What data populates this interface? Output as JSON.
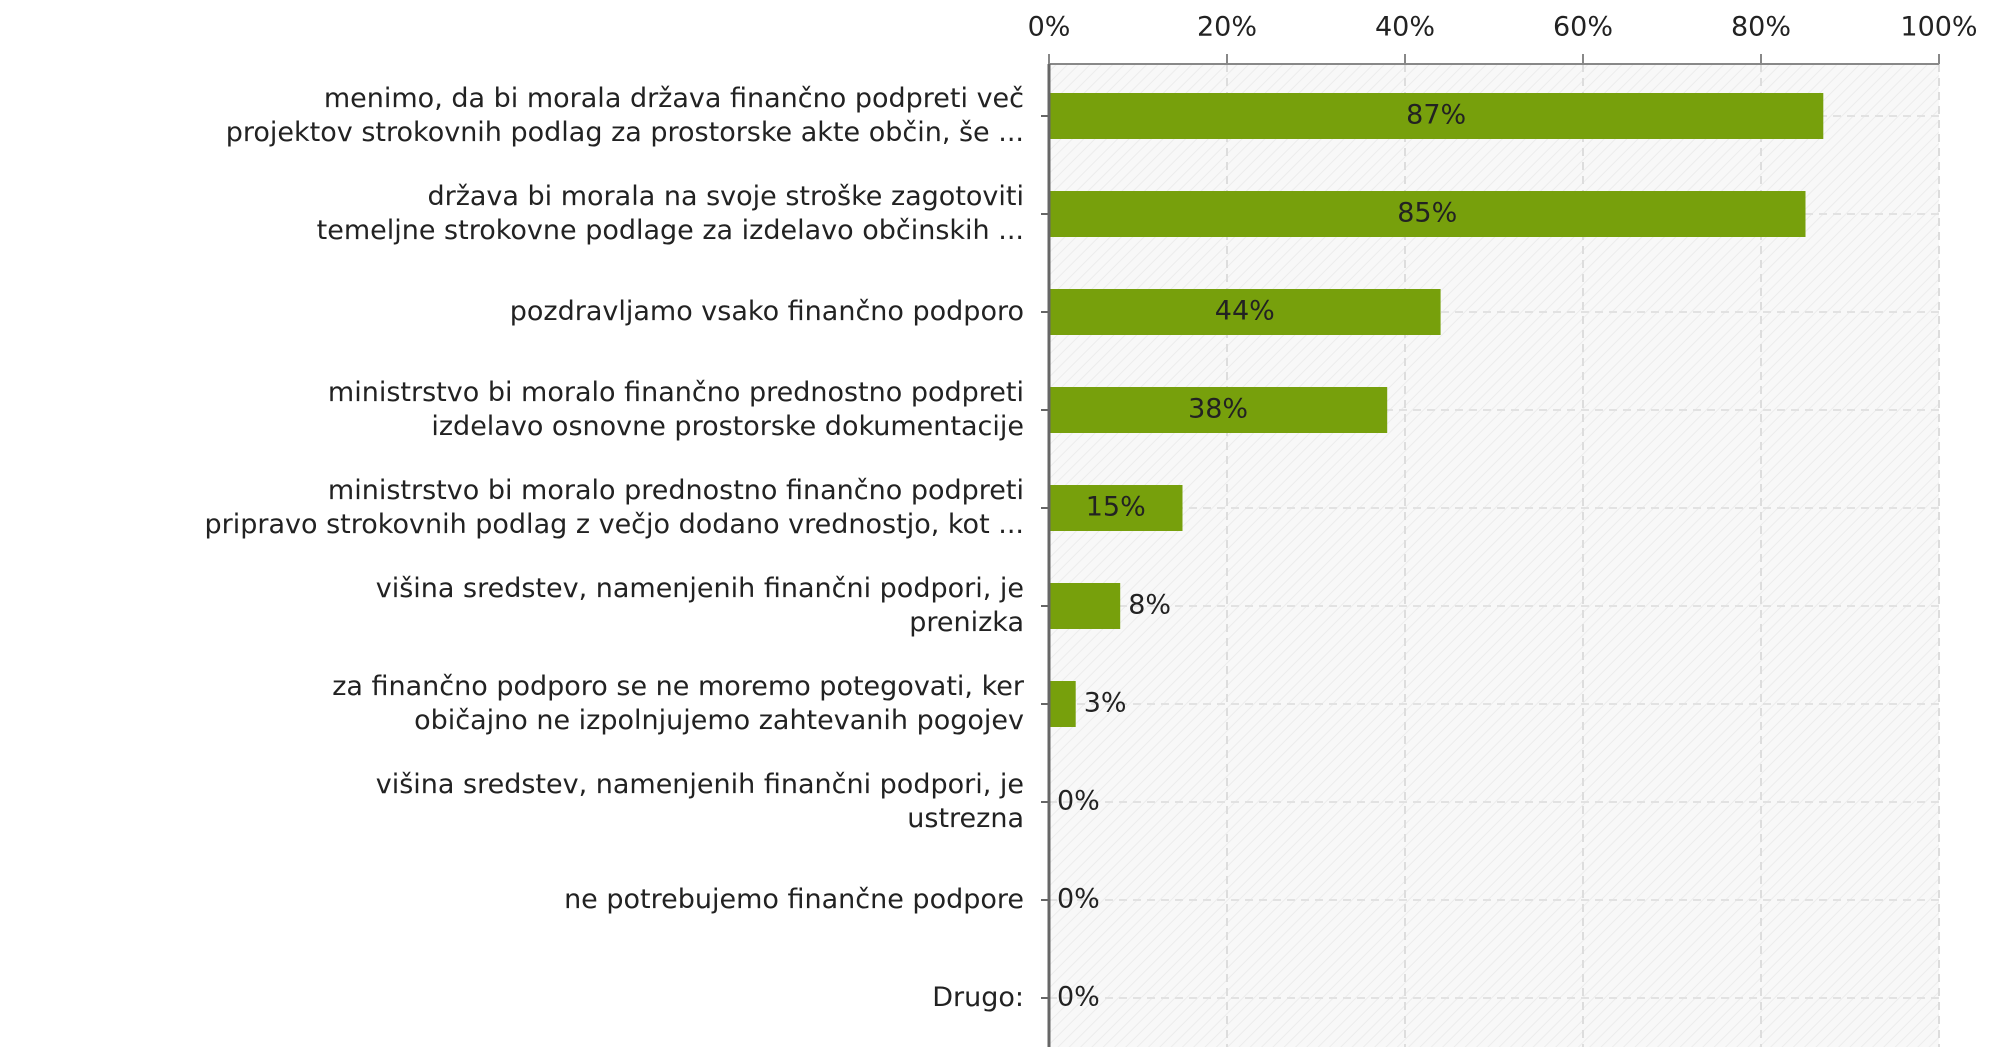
{
  "chart_data": {
    "type": "barh",
    "categories": [
      "menimo, da bi morala država finančno podpreti več\nprojektov strokovnih podlag za prostorske akte občin, še ...",
      "država bi morala na svoje stroške zagotoviti\ntemeljne strokovne podlage za izdelavo občinskih ...",
      "pozdravljamo vsako finančno podporo",
      "ministrstvo bi moralo finančno prednostno podpreti\nizdelavo osnovne prostorske dokumentacije",
      "ministrstvo bi moralo prednostno finančno podpreti\npripravo strokovnih podlag z večjo dodano vrednostjo, kot ...",
      "višina sredstev, namenjenih finančni podpori, je\nprenizka",
      "za finančno podporo se ne moremo potegovati, ker\nobičajno ne izpolnjujemo zahtevanih pogojev",
      "višina sredstev, namenjenih finančni podpori, je\nustrezna",
      "ne potrebujemo finančne podpore",
      "Drugo:"
    ],
    "values": [
      87,
      85,
      44,
      38,
      15,
      8,
      3,
      0,
      0,
      0
    ],
    "value_labels": [
      "87%",
      "85%",
      "44%",
      "38%",
      "15%",
      "8%",
      "3%",
      "0%",
      "0%",
      "0%"
    ],
    "color": "#77a00c",
    "xlim": [
      0,
      100
    ],
    "xticks": [
      {
        "value": 0,
        "label": "0%"
      },
      {
        "value": 20,
        "label": "20%"
      },
      {
        "value": 40,
        "label": "40%"
      },
      {
        "value": 60,
        "label": "60%"
      },
      {
        "value": 80,
        "label": "80%"
      },
      {
        "value": 100,
        "label": "100%"
      }
    ],
    "grid": true
  }
}
